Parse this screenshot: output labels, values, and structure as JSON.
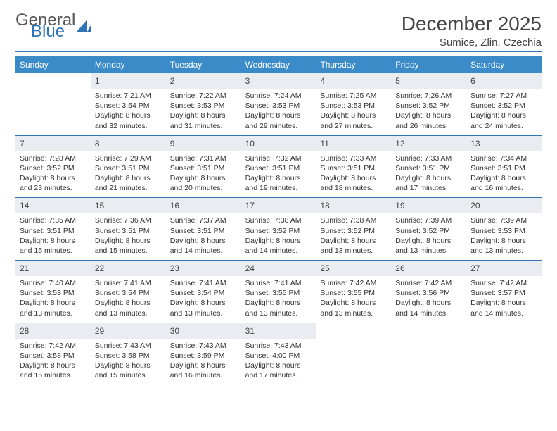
{
  "brand": {
    "word1": "General",
    "word2": "Blue"
  },
  "title": "December 2025",
  "location": "Sumice, Zlin, Czechia",
  "day_headers": [
    "Sunday",
    "Monday",
    "Tuesday",
    "Wednesday",
    "Thursday",
    "Friday",
    "Saturday"
  ],
  "colors": {
    "header_bg": "#3b8bc9",
    "rule": "#2f74b5",
    "daynum_bg": "#e9edf1",
    "text": "#333333"
  },
  "typography": {
    "title_fontsize_pt": 21,
    "location_fontsize_pt": 11,
    "header_fontsize_pt": 9,
    "body_fontsize_pt": 8
  },
  "layout": {
    "weeks": 5,
    "cols": 7,
    "first_day_col": 1
  },
  "weeks": [
    [
      null,
      {
        "n": "1",
        "sr": "Sunrise: 7:21 AM",
        "ss": "Sunset: 3:54 PM",
        "d1": "Daylight: 8 hours",
        "d2": "and 32 minutes."
      },
      {
        "n": "2",
        "sr": "Sunrise: 7:22 AM",
        "ss": "Sunset: 3:53 PM",
        "d1": "Daylight: 8 hours",
        "d2": "and 31 minutes."
      },
      {
        "n": "3",
        "sr": "Sunrise: 7:24 AM",
        "ss": "Sunset: 3:53 PM",
        "d1": "Daylight: 8 hours",
        "d2": "and 29 minutes."
      },
      {
        "n": "4",
        "sr": "Sunrise: 7:25 AM",
        "ss": "Sunset: 3:53 PM",
        "d1": "Daylight: 8 hours",
        "d2": "and 27 minutes."
      },
      {
        "n": "5",
        "sr": "Sunrise: 7:26 AM",
        "ss": "Sunset: 3:52 PM",
        "d1": "Daylight: 8 hours",
        "d2": "and 26 minutes."
      },
      {
        "n": "6",
        "sr": "Sunrise: 7:27 AM",
        "ss": "Sunset: 3:52 PM",
        "d1": "Daylight: 8 hours",
        "d2": "and 24 minutes."
      }
    ],
    [
      {
        "n": "7",
        "sr": "Sunrise: 7:28 AM",
        "ss": "Sunset: 3:52 PM",
        "d1": "Daylight: 8 hours",
        "d2": "and 23 minutes."
      },
      {
        "n": "8",
        "sr": "Sunrise: 7:29 AM",
        "ss": "Sunset: 3:51 PM",
        "d1": "Daylight: 8 hours",
        "d2": "and 21 minutes."
      },
      {
        "n": "9",
        "sr": "Sunrise: 7:31 AM",
        "ss": "Sunset: 3:51 PM",
        "d1": "Daylight: 8 hours",
        "d2": "and 20 minutes."
      },
      {
        "n": "10",
        "sr": "Sunrise: 7:32 AM",
        "ss": "Sunset: 3:51 PM",
        "d1": "Daylight: 8 hours",
        "d2": "and 19 minutes."
      },
      {
        "n": "11",
        "sr": "Sunrise: 7:33 AM",
        "ss": "Sunset: 3:51 PM",
        "d1": "Daylight: 8 hours",
        "d2": "and 18 minutes."
      },
      {
        "n": "12",
        "sr": "Sunrise: 7:33 AM",
        "ss": "Sunset: 3:51 PM",
        "d1": "Daylight: 8 hours",
        "d2": "and 17 minutes."
      },
      {
        "n": "13",
        "sr": "Sunrise: 7:34 AM",
        "ss": "Sunset: 3:51 PM",
        "d1": "Daylight: 8 hours",
        "d2": "and 16 minutes."
      }
    ],
    [
      {
        "n": "14",
        "sr": "Sunrise: 7:35 AM",
        "ss": "Sunset: 3:51 PM",
        "d1": "Daylight: 8 hours",
        "d2": "and 15 minutes."
      },
      {
        "n": "15",
        "sr": "Sunrise: 7:36 AM",
        "ss": "Sunset: 3:51 PM",
        "d1": "Daylight: 8 hours",
        "d2": "and 15 minutes."
      },
      {
        "n": "16",
        "sr": "Sunrise: 7:37 AM",
        "ss": "Sunset: 3:51 PM",
        "d1": "Daylight: 8 hours",
        "d2": "and 14 minutes."
      },
      {
        "n": "17",
        "sr": "Sunrise: 7:38 AM",
        "ss": "Sunset: 3:52 PM",
        "d1": "Daylight: 8 hours",
        "d2": "and 14 minutes."
      },
      {
        "n": "18",
        "sr": "Sunrise: 7:38 AM",
        "ss": "Sunset: 3:52 PM",
        "d1": "Daylight: 8 hours",
        "d2": "and 13 minutes."
      },
      {
        "n": "19",
        "sr": "Sunrise: 7:39 AM",
        "ss": "Sunset: 3:52 PM",
        "d1": "Daylight: 8 hours",
        "d2": "and 13 minutes."
      },
      {
        "n": "20",
        "sr": "Sunrise: 7:39 AM",
        "ss": "Sunset: 3:53 PM",
        "d1": "Daylight: 8 hours",
        "d2": "and 13 minutes."
      }
    ],
    [
      {
        "n": "21",
        "sr": "Sunrise: 7:40 AM",
        "ss": "Sunset: 3:53 PM",
        "d1": "Daylight: 8 hours",
        "d2": "and 13 minutes."
      },
      {
        "n": "22",
        "sr": "Sunrise: 7:41 AM",
        "ss": "Sunset: 3:54 PM",
        "d1": "Daylight: 8 hours",
        "d2": "and 13 minutes."
      },
      {
        "n": "23",
        "sr": "Sunrise: 7:41 AM",
        "ss": "Sunset: 3:54 PM",
        "d1": "Daylight: 8 hours",
        "d2": "and 13 minutes."
      },
      {
        "n": "24",
        "sr": "Sunrise: 7:41 AM",
        "ss": "Sunset: 3:55 PM",
        "d1": "Daylight: 8 hours",
        "d2": "and 13 minutes."
      },
      {
        "n": "25",
        "sr": "Sunrise: 7:42 AM",
        "ss": "Sunset: 3:55 PM",
        "d1": "Daylight: 8 hours",
        "d2": "and 13 minutes."
      },
      {
        "n": "26",
        "sr": "Sunrise: 7:42 AM",
        "ss": "Sunset: 3:56 PM",
        "d1": "Daylight: 8 hours",
        "d2": "and 14 minutes."
      },
      {
        "n": "27",
        "sr": "Sunrise: 7:42 AM",
        "ss": "Sunset: 3:57 PM",
        "d1": "Daylight: 8 hours",
        "d2": "and 14 minutes."
      }
    ],
    [
      {
        "n": "28",
        "sr": "Sunrise: 7:42 AM",
        "ss": "Sunset: 3:58 PM",
        "d1": "Daylight: 8 hours",
        "d2": "and 15 minutes."
      },
      {
        "n": "29",
        "sr": "Sunrise: 7:43 AM",
        "ss": "Sunset: 3:58 PM",
        "d1": "Daylight: 8 hours",
        "d2": "and 15 minutes."
      },
      {
        "n": "30",
        "sr": "Sunrise: 7:43 AM",
        "ss": "Sunset: 3:59 PM",
        "d1": "Daylight: 8 hours",
        "d2": "and 16 minutes."
      },
      {
        "n": "31",
        "sr": "Sunrise: 7:43 AM",
        "ss": "Sunset: 4:00 PM",
        "d1": "Daylight: 8 hours",
        "d2": "and 17 minutes."
      },
      null,
      null,
      null
    ]
  ]
}
